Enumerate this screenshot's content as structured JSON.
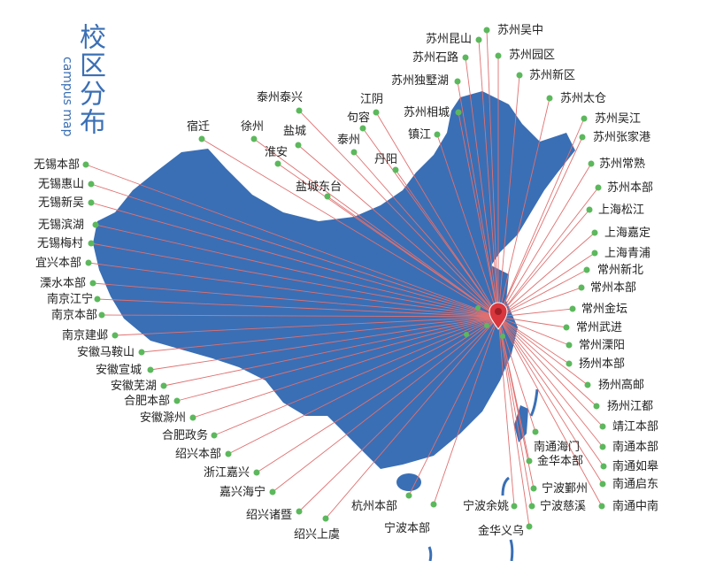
{
  "title": "校区分布",
  "subtitle": "campus map",
  "colors": {
    "map_fill": "#3a6fb5",
    "line": "#e07070",
    "dot": "#5cb85c",
    "pin": "#d9363e",
    "title": "#3a6fb5"
  },
  "pin_icon": "map-pin-icon",
  "campuses": [
    "苏州昆山",
    "苏州吴中",
    "苏州石路",
    "苏州园区",
    "苏州独墅湖",
    "苏州新区",
    "苏州太仓",
    "江阴",
    "苏州相城",
    "苏州吴江",
    "句容",
    "苏州张家港",
    "镇江",
    "泰州泰兴",
    "泰州",
    "宿迁",
    "徐州",
    "盐城",
    "淮安",
    "丹阳",
    "苏州常熟",
    "盐城东台",
    "苏州本部",
    "上海松江",
    "上海嘉定",
    "上海青浦",
    "常州新北",
    "常州本部",
    "常州金坛",
    "常州武进",
    "常州溧阳",
    "扬州本部",
    "扬州高邮",
    "扬州江都",
    "靖江本部",
    "南通本部",
    "南通如皋",
    "南通启东",
    "南通中南",
    "南通海门",
    "金华本部",
    "宁波鄞州",
    "宁波慈溪",
    "宁波余姚",
    "金华义乌",
    "宁波本部",
    "杭州本部",
    "绍兴上虞",
    "绍兴诸暨",
    "嘉兴海宁",
    "浙江嘉兴",
    "绍兴本部",
    "合肥政务",
    "安徽滁州",
    "合肥本部",
    "安徽芜湖",
    "安徽宣城",
    "安徽马鞍山",
    "南京建邺",
    "南京本部",
    "南京江宁",
    "溧水本部",
    "宜兴本部",
    "无锡梅村",
    "无锡滨湖",
    "无锡新吴",
    "无锡惠山",
    "无锡本部"
  ]
}
